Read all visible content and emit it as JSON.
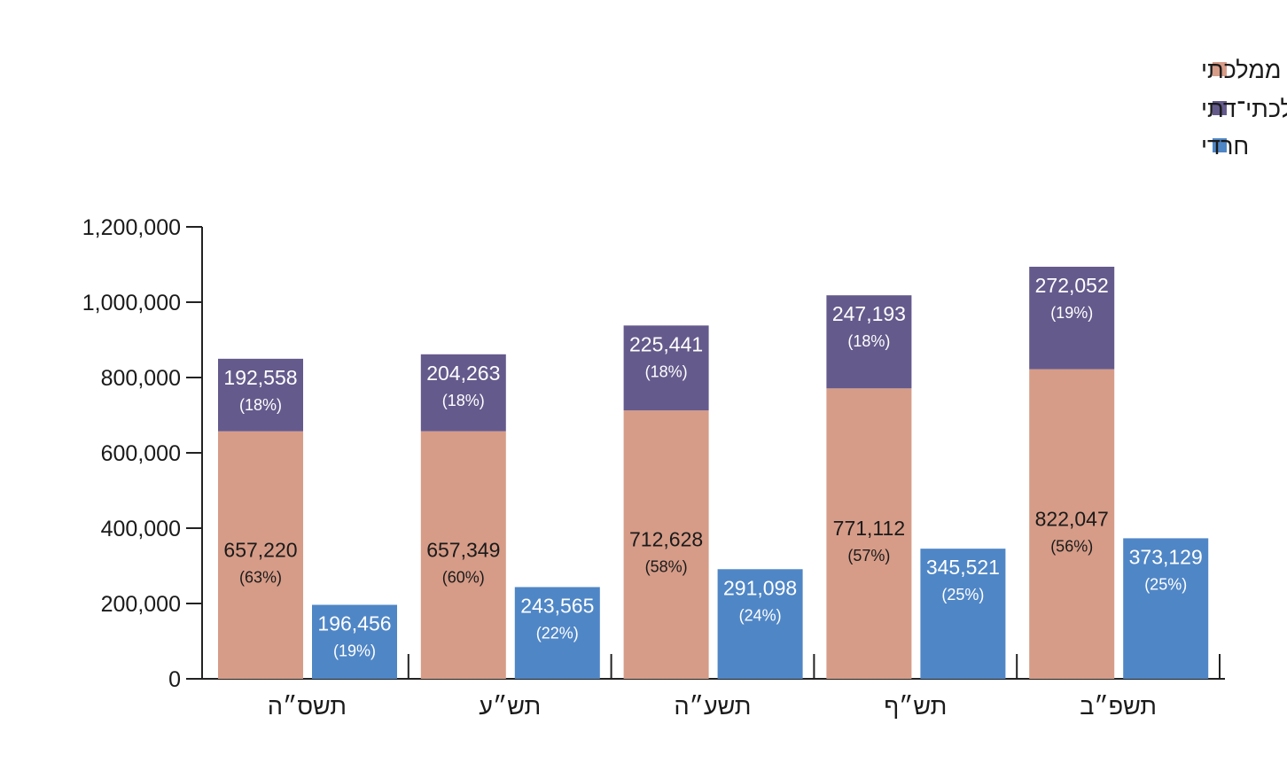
{
  "chart_data": {
    "type": "bar",
    "stacked_series_count": 2,
    "categories": [
      "תשס״ה",
      "תש״ע",
      "תשע״ה",
      "תש״ף",
      "תשפ״ב"
    ],
    "series": [
      {
        "name": "ממלכתי",
        "color": "#d69c88",
        "stack": "a",
        "values": [
          657220,
          657349,
          712628,
          771112,
          822047
        ],
        "labels": [
          "657,220",
          "657,349",
          "712,628",
          "771,112",
          "822,047"
        ],
        "percents": [
          "(63%)",
          "(60%)",
          "(58%)",
          "(57%)",
          "(56%)"
        ]
      },
      {
        "name": "ממלכתי־דתי",
        "color": "#655a8c",
        "stack": "a",
        "values": [
          192558,
          204263,
          225441,
          247193,
          272052
        ],
        "labels": [
          "192,558",
          "204,263",
          "225,441",
          "247,193",
          "272,052"
        ],
        "percents": [
          "(18%)",
          "(18%)",
          "(18%)",
          "(18%)",
          "(19%)"
        ]
      },
      {
        "name": "חרדי",
        "color": "#4f86c6",
        "stack": "b",
        "values": [
          196456,
          243565,
          291098,
          345521,
          373129
        ],
        "labels": [
          "196,456",
          "243,565",
          "291,098",
          "345,521",
          "373,129"
        ],
        "percents": [
          "(19%)",
          "(22%)",
          "(24%)",
          "(25%)",
          "(25%)"
        ]
      }
    ],
    "yticks": [
      0,
      200000,
      400000,
      600000,
      800000,
      1000000,
      1200000
    ],
    "ytick_labels": [
      "0",
      "200,000",
      "400,000",
      "600,000",
      "800,000",
      "1,000,000",
      "1,200,000"
    ],
    "ylim": [
      0,
      1200000
    ],
    "title": "",
    "xlabel": "",
    "ylabel": "",
    "grid": false,
    "legend_position": "top-right"
  }
}
